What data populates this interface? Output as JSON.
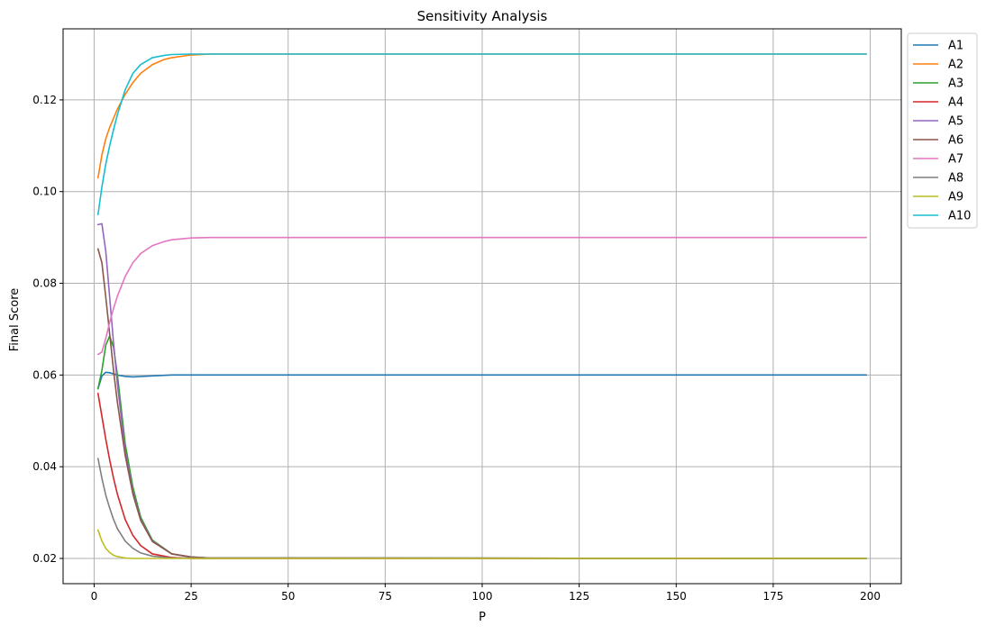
{
  "chart_data": {
    "type": "line",
    "title": "Sensitivity Analysis",
    "xlabel": "P",
    "ylabel": "Final Score",
    "xlim": [
      -8,
      208
    ],
    "ylim": [
      0.0145,
      0.1355
    ],
    "xticks": [
      0,
      25,
      50,
      75,
      100,
      125,
      150,
      175,
      200
    ],
    "yticks": [
      0.02,
      0.04,
      0.06,
      0.08,
      0.1,
      0.12
    ],
    "ytick_labels": [
      "0.02",
      "0.04",
      "0.06",
      "0.08",
      "0.10",
      "0.12"
    ],
    "grid": true,
    "legend": "outside-top-right",
    "series": [
      {
        "name": "A1",
        "color": "#1f77b4",
        "x": [
          1,
          2,
          3,
          4,
          6,
          8,
          10,
          15,
          20,
          30,
          199
        ],
        "y": [
          0.057,
          0.0598,
          0.0606,
          0.0605,
          0.06,
          0.0597,
          0.0596,
          0.0598,
          0.06,
          0.06,
          0.06
        ]
      },
      {
        "name": "A2",
        "color": "#ff7f0e",
        "x": [
          1,
          2,
          3,
          4,
          5,
          6,
          8,
          10,
          12,
          15,
          18,
          20,
          25,
          30,
          40,
          199
        ],
        "y": [
          0.103,
          0.108,
          0.1115,
          0.114,
          0.116,
          0.118,
          0.1212,
          0.1238,
          0.1258,
          0.1277,
          0.1288,
          0.1292,
          0.1298,
          0.13,
          0.13,
          0.13
        ]
      },
      {
        "name": "A3",
        "color": "#2ca02c",
        "x": [
          1,
          2,
          3,
          4,
          5,
          6,
          8,
          10,
          12,
          15,
          20,
          25,
          30,
          199
        ],
        "y": [
          0.057,
          0.061,
          0.0665,
          0.0685,
          0.066,
          0.06,
          0.045,
          0.0355,
          0.029,
          0.024,
          0.021,
          0.0203,
          0.0201,
          0.02
        ]
      },
      {
        "name": "A4",
        "color": "#d62728",
        "x": [
          1,
          2,
          3,
          4,
          5,
          6,
          8,
          10,
          12,
          15,
          20,
          25,
          199
        ],
        "y": [
          0.056,
          0.051,
          0.046,
          0.0415,
          0.0375,
          0.034,
          0.0285,
          0.025,
          0.0228,
          0.021,
          0.0202,
          0.02,
          0.02
        ]
      },
      {
        "name": "A5",
        "color": "#9467bd",
        "x": [
          1,
          2,
          3,
          4,
          5,
          6,
          8,
          10,
          12,
          15,
          20,
          25,
          30,
          199
        ],
        "y": [
          0.0928,
          0.093,
          0.087,
          0.077,
          0.067,
          0.058,
          0.0435,
          0.0345,
          0.0285,
          0.0238,
          0.021,
          0.0203,
          0.0201,
          0.02
        ]
      },
      {
        "name": "A6",
        "color": "#8c564b",
        "x": [
          1,
          2,
          3,
          4,
          5,
          6,
          8,
          10,
          12,
          15,
          20,
          25,
          30,
          199
        ],
        "y": [
          0.0875,
          0.0845,
          0.077,
          0.069,
          0.061,
          0.054,
          0.0425,
          0.034,
          0.0283,
          0.0237,
          0.021,
          0.0203,
          0.0201,
          0.02
        ]
      },
      {
        "name": "A7",
        "color": "#e377c2",
        "x": [
          1,
          2,
          3,
          4,
          5,
          6,
          8,
          10,
          12,
          15,
          18,
          20,
          25,
          30,
          199
        ],
        "y": [
          0.0645,
          0.065,
          0.068,
          0.0715,
          0.0745,
          0.0772,
          0.0815,
          0.0845,
          0.0865,
          0.0882,
          0.0891,
          0.0895,
          0.0899,
          0.09,
          0.09
        ]
      },
      {
        "name": "A8",
        "color": "#7f7f7f",
        "x": [
          1,
          2,
          3,
          4,
          5,
          6,
          8,
          10,
          12,
          15,
          20,
          199
        ],
        "y": [
          0.0418,
          0.0375,
          0.0338,
          0.031,
          0.0285,
          0.0265,
          0.0238,
          0.0222,
          0.0212,
          0.0205,
          0.0201,
          0.02
        ]
      },
      {
        "name": "A9",
        "color": "#bcbd22",
        "x": [
          1,
          2,
          3,
          4,
          5,
          6,
          8,
          10,
          15,
          199
        ],
        "y": [
          0.0262,
          0.0238,
          0.0222,
          0.0213,
          0.0207,
          0.0204,
          0.0201,
          0.02,
          0.02,
          0.02
        ]
      },
      {
        "name": "A10",
        "color": "#17becf",
        "x": [
          1,
          2,
          3,
          4,
          5,
          6,
          8,
          10,
          12,
          15,
          18,
          20,
          25,
          30,
          199
        ],
        "y": [
          0.095,
          0.101,
          0.106,
          0.11,
          0.1135,
          0.1168,
          0.1222,
          0.1258,
          0.1277,
          0.1292,
          0.1297,
          0.1299,
          0.13,
          0.13,
          0.13
        ]
      }
    ]
  }
}
